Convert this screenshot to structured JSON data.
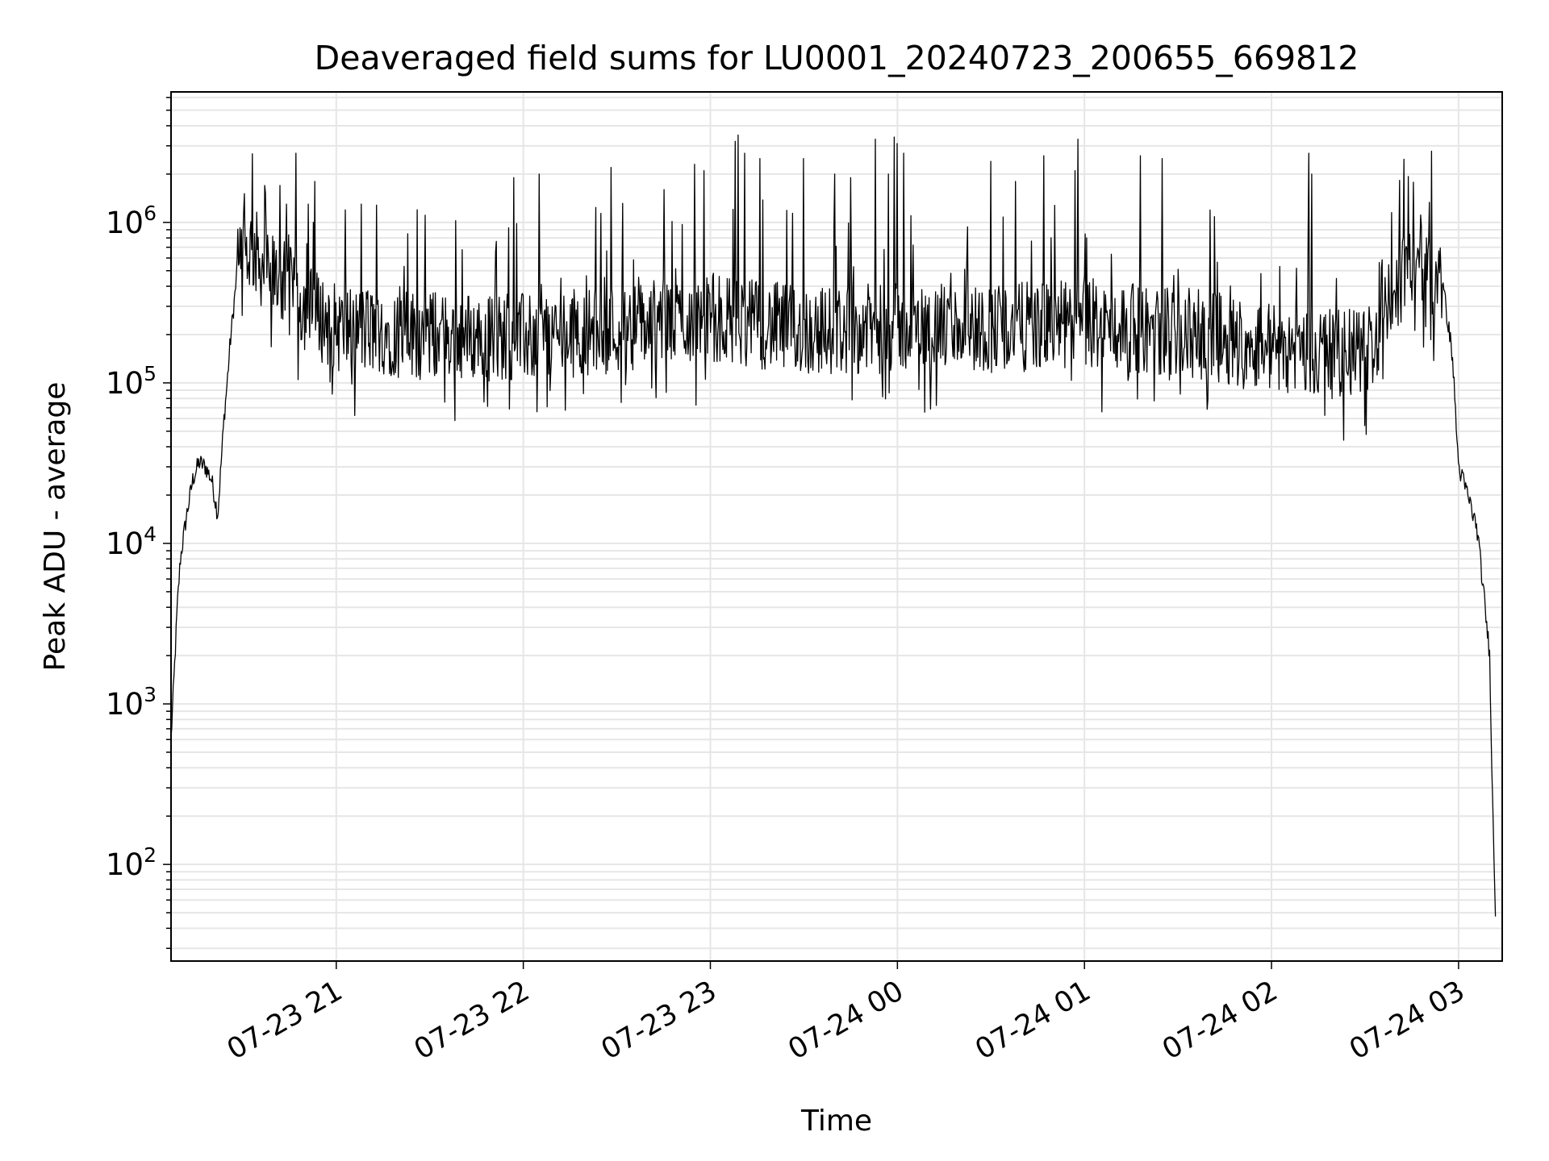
{
  "chart_data": {
    "type": "line",
    "title": "Deaveraged field sums for LU0001_20240723_200655_669812",
    "xlabel": "Time",
    "ylabel": "Peak ADU - average",
    "yscale": "log",
    "xlim": [
      "2024-07-23 20:07",
      "2024-07-24 03:14"
    ],
    "ylim": [
      25,
      6500000
    ],
    "grid": true,
    "x_ticks": [
      "07-23 21",
      "07-23 22",
      "07-23 23",
      "07-24 00",
      "07-24 01",
      "07-24 02",
      "07-24 03"
    ],
    "y_ticks": [
      {
        "base": "10",
        "exp": "2",
        "value": 100
      },
      {
        "base": "10",
        "exp": "3",
        "value": 1000
      },
      {
        "base": "10",
        "exp": "4",
        "value": 10000
      },
      {
        "base": "10",
        "exp": "5",
        "value": 100000
      },
      {
        "base": "10",
        "exp": "6",
        "value": 1000000
      }
    ],
    "series_color": "#000000",
    "baseline": {
      "x": [
        "2024-07-23 20:07",
        "2024-07-23 20:08",
        "2024-07-23 20:09",
        "2024-07-23 20:10",
        "2024-07-23 20:12",
        "2024-07-23 20:14",
        "2024-07-23 20:16",
        "2024-07-23 20:18",
        "2024-07-23 20:20",
        "2024-07-23 20:22",
        "2024-07-23 20:24",
        "2024-07-23 20:25",
        "2024-07-23 20:26",
        "2024-07-23 20:28",
        "2024-07-23 20:30",
        "2024-07-23 20:33",
        "2024-07-23 20:36",
        "2024-07-23 20:40",
        "2024-07-23 20:45",
        "2024-07-23 20:50",
        "2024-07-23 21:00",
        "2024-07-23 21:30",
        "2024-07-23 22:00",
        "2024-07-23 22:30",
        "2024-07-23 23:00",
        "2024-07-23 23:30",
        "2024-07-24 00:00",
        "2024-07-24 00:30",
        "2024-07-24 01:00",
        "2024-07-24 01:30",
        "2024-07-24 02:00",
        "2024-07-24 02:20",
        "2024-07-24 02:30",
        "2024-07-24 02:35",
        "2024-07-24 02:40",
        "2024-07-24 02:45",
        "2024-07-24 02:50",
        "2024-07-24 02:55",
        "2024-07-24 02:58",
        "2024-07-24 03:00",
        "2024-07-24 03:03",
        "2024-07-24 03:06",
        "2024-07-24 03:08",
        "2024-07-24 03:10",
        "2024-07-24 03:11",
        "2024-07-24 03:12"
      ],
      "y": [
        600,
        1500,
        4000,
        8000,
        15000,
        25000,
        32000,
        30000,
        25000,
        15000,
        60000,
        100000,
        180000,
        450000,
        600000,
        700000,
        550000,
        450000,
        380000,
        300000,
        220000,
        200000,
        190000,
        220000,
        260000,
        210000,
        220000,
        220000,
        230000,
        210000,
        170000,
        150000,
        160000,
        200000,
        400000,
        550000,
        500000,
        400000,
        150000,
        30000,
        20000,
        12000,
        5000,
        2000,
        200,
        40
      ]
    },
    "spikes": {
      "x": [
        "2024-07-23 20:37",
        "2024-07-23 20:42",
        "2024-07-23 20:44",
        "2024-07-23 20:47",
        "2024-07-23 20:51",
        "2024-07-23 20:53",
        "2024-07-23 21:08",
        "2024-07-23 21:26",
        "2024-07-23 21:57",
        "2024-07-23 22:05",
        "2024-07-23 22:28",
        "2024-07-23 22:45",
        "2024-07-23 22:55",
        "2024-07-23 22:58",
        "2024-07-23 23:08",
        "2024-07-23 23:09",
        "2024-07-23 23:11",
        "2024-07-23 23:16",
        "23:30",
        "2024-07-23 23:40",
        "2024-07-23 23:45",
        "2024-07-23 23:53",
        "2024-07-23 23:57",
        "2024-07-23 23:59",
        "2024-07-24 00:00",
        "2024-07-24 00:02",
        "2024-07-24 00:30",
        "2024-07-24 00:38",
        "2024-07-24 00:47",
        "2024-07-24 00:57",
        "2024-07-24 00:58",
        "2024-07-24 01:18",
        "2024-07-24 01:25",
        "2024-07-24 02:12",
        "2024-07-24 02:13"
      ],
      "y": [
        1700000,
        1700000,
        1300000,
        2700000,
        1300000,
        1800000,
        1300000,
        1200000,
        1900000,
        2000000,
        2200000,
        1600000,
        2300000,
        2100000,
        3200000,
        3500000,
        2700000,
        2500000,
        2500000,
        2000000,
        1900000,
        3300000,
        2000000,
        3400000,
        3100000,
        2700000,
        2400000,
        1800000,
        2600000,
        2100000,
        3300000,
        2600000,
        2500000,
        2700000,
        2000000
      ]
    }
  }
}
